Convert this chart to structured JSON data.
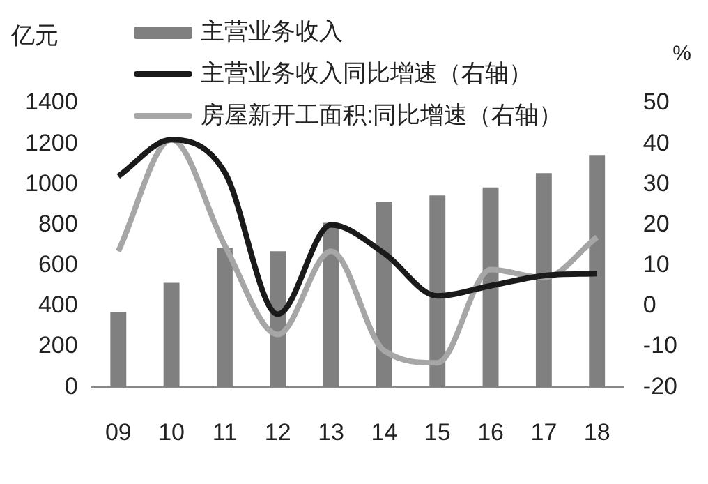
{
  "chart_data": {
    "type": "bar",
    "ylabel": "亿元",
    "y2label": "%",
    "categories": [
      "09",
      "10",
      "11",
      "12",
      "13",
      "14",
      "15",
      "16",
      "17",
      "18"
    ],
    "series": [
      {
        "name": "主营业务收入",
        "color": "#808080",
        "values": [
          370,
          515,
          685,
          670,
          810,
          915,
          945,
          985,
          1055,
          1145
        ]
      },
      {
        "name": "主营业务收入同比增速（右轴）",
        "type": "line",
        "axis": "y2",
        "color": "#1a1a1a",
        "values": [
          32,
          41,
          33,
          -2,
          20,
          13,
          2.5,
          5,
          7.5,
          8
        ]
      },
      {
        "name": "房屋新开工面积:同比增速（右轴）",
        "type": "line",
        "axis": "y2",
        "color": "#a6a6a6",
        "values": [
          13.5,
          41,
          15,
          -7,
          13.5,
          -11,
          -14,
          9,
          7,
          17
        ]
      }
    ],
    "ylim": [
      0,
      1400
    ],
    "yticks": [
      0,
      200,
      400,
      600,
      800,
      1000,
      1200,
      1400
    ],
    "y2lim": [
      -20,
      50
    ],
    "y2ticks": [
      -20,
      -10,
      0,
      10,
      20,
      30,
      40,
      50
    ],
    "grid": false,
    "legend": "top left",
    "marker": "none"
  }
}
